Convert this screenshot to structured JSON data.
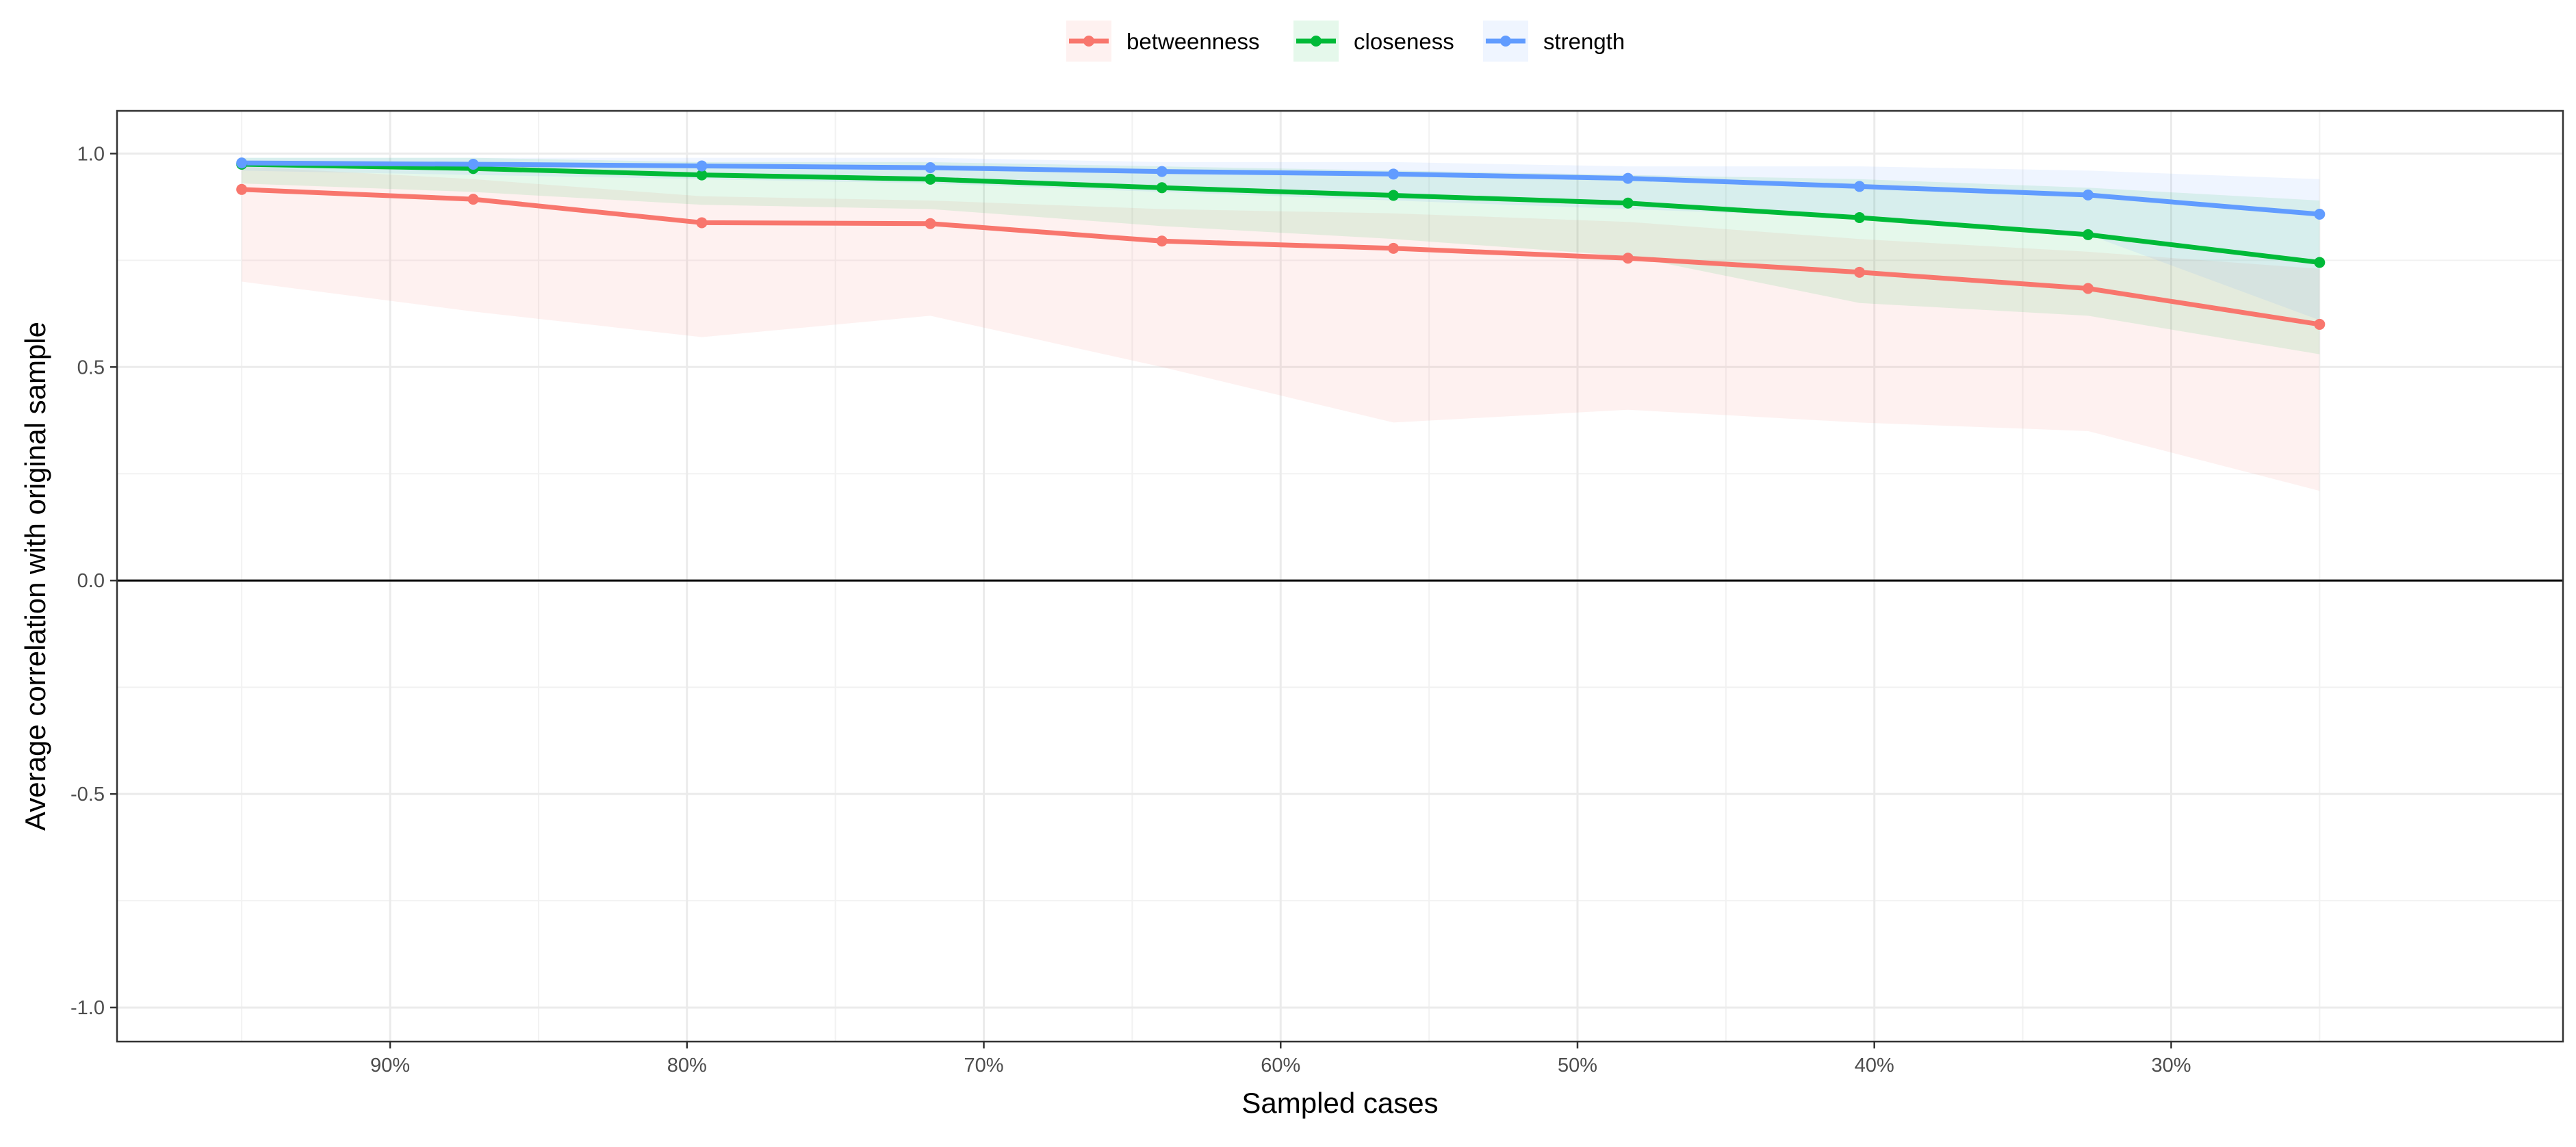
{
  "chart_data": {
    "type": "line",
    "xlabel": "Sampled cases",
    "ylabel": "Average correlation with original sample",
    "x": [
      95,
      87.2,
      79.5,
      71.8,
      64,
      56.2,
      48.3,
      40.5,
      32.8,
      25
    ],
    "x_ticks": [
      90,
      80,
      70,
      60,
      50,
      40,
      30
    ],
    "x_tick_labels": [
      "90%",
      "80%",
      "70%",
      "60%",
      "50%",
      "40%",
      "30%"
    ],
    "xlim": [
      99.2,
      16.8
    ],
    "x_reversed": true,
    "y_ticks": [
      1.0,
      0.5,
      0.0,
      -0.5,
      -1.0
    ],
    "y_tick_labels": [
      "1.0",
      "0.5",
      "0.0",
      "-0.5",
      "-1.0"
    ],
    "ylim": [
      -1.08,
      1.1
    ],
    "hline": 0,
    "grid": true,
    "legend_position": "top",
    "series": [
      {
        "name": "betweenness",
        "color": "#F8766D",
        "values": [
          0.916,
          0.893,
          0.838,
          0.836,
          0.795,
          0.778,
          0.755,
          0.722,
          0.684,
          0.6
        ],
        "lower": [
          0.7,
          0.63,
          0.57,
          0.62,
          0.5,
          0.37,
          0.4,
          0.37,
          0.35,
          0.21
        ],
        "upper": [
          0.97,
          0.94,
          0.9,
          0.89,
          0.87,
          0.86,
          0.84,
          0.8,
          0.77,
          0.73
        ]
      },
      {
        "name": "closeness",
        "color": "#00BA38",
        "values": [
          0.975,
          0.965,
          0.95,
          0.94,
          0.92,
          0.902,
          0.884,
          0.85,
          0.81,
          0.745
        ],
        "lower": [
          0.93,
          0.91,
          0.88,
          0.87,
          0.83,
          0.8,
          0.76,
          0.65,
          0.62,
          0.53
        ],
        "upper": [
          0.99,
          0.99,
          0.98,
          0.98,
          0.97,
          0.96,
          0.95,
          0.94,
          0.92,
          0.89
        ]
      },
      {
        "name": "strength",
        "color": "#619CFF",
        "values": [
          0.978,
          0.975,
          0.971,
          0.967,
          0.958,
          0.952,
          0.942,
          0.923,
          0.903,
          0.858
        ],
        "lower": [
          0.96,
          0.95,
          0.94,
          0.93,
          0.91,
          0.89,
          0.87,
          0.85,
          0.81,
          0.61
        ],
        "upper": [
          0.99,
          0.99,
          0.99,
          0.99,
          0.98,
          0.98,
          0.97,
          0.97,
          0.96,
          0.94
        ]
      }
    ]
  }
}
